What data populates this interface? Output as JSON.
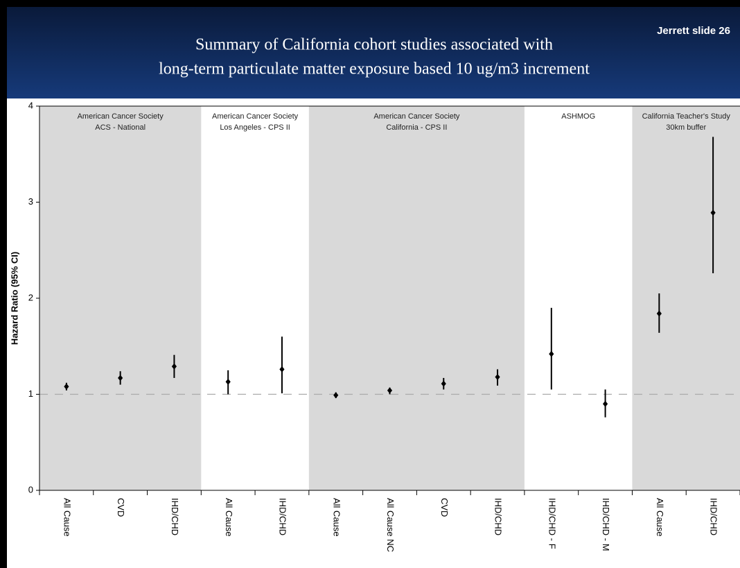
{
  "header": {
    "slide_label": "Jerrett slide 26"
  },
  "chart_data": {
    "type": "errorbar",
    "title": [
      "Summary of California cohort studies associated with",
      "long-term particulate matter exposure based 10 ug/m3 increment"
    ],
    "y_label": "Hazard Ratio (95% CI)",
    "categories": [
      "All Cause",
      "CVD",
      "IHD/CHD",
      "All Cause",
      "IHD/CHD",
      "All Cause",
      "All Cause NC",
      "CVD",
      "IHD/CHD",
      "IHD/CHD - F",
      "IHD/CHD - M",
      "All Cause",
      "IHD/CHD"
    ],
    "series": [
      {
        "color": "#000000",
        "values": [
          1.08,
          1.17,
          1.29,
          1.13,
          1.26,
          0.99,
          1.04,
          1.11,
          1.18,
          1.42,
          0.9,
          1.84,
          2.89
        ],
        "ci_low": [
          1.04,
          1.1,
          1.17,
          1.0,
          1.01,
          0.96,
          1.0,
          1.05,
          1.09,
          1.05,
          0.76,
          1.64,
          2.26
        ],
        "ci_high": [
          1.12,
          1.24,
          1.41,
          1.25,
          1.6,
          1.02,
          1.07,
          1.17,
          1.26,
          1.9,
          1.05,
          2.05,
          3.68
        ]
      }
    ],
    "groups": [
      {
        "label": [
          "American Cancer Society",
          "ACS - National"
        ],
        "first": 0,
        "last": 2,
        "shaded": true
      },
      {
        "label": [
          "American Cancer Society",
          "Los Angeles - CPS II"
        ],
        "first": 3,
        "last": 4,
        "shaded": false
      },
      {
        "label": [
          "American Cancer Society",
          "California - CPS II"
        ],
        "first": 5,
        "last": 8,
        "shaded": true
      },
      {
        "label": [
          "ASHMOG"
        ],
        "first": 9,
        "last": 10,
        "shaded": false
      },
      {
        "label": [
          "California Teacher's Study",
          "30km buffer"
        ],
        "first": 11,
        "last": 12,
        "shaded": true
      }
    ],
    "reference_line": 1,
    "ylim": [
      0,
      4
    ],
    "yticks": [
      0,
      1,
      2,
      3,
      4
    ],
    "shade_color": "#d9d9d9"
  }
}
